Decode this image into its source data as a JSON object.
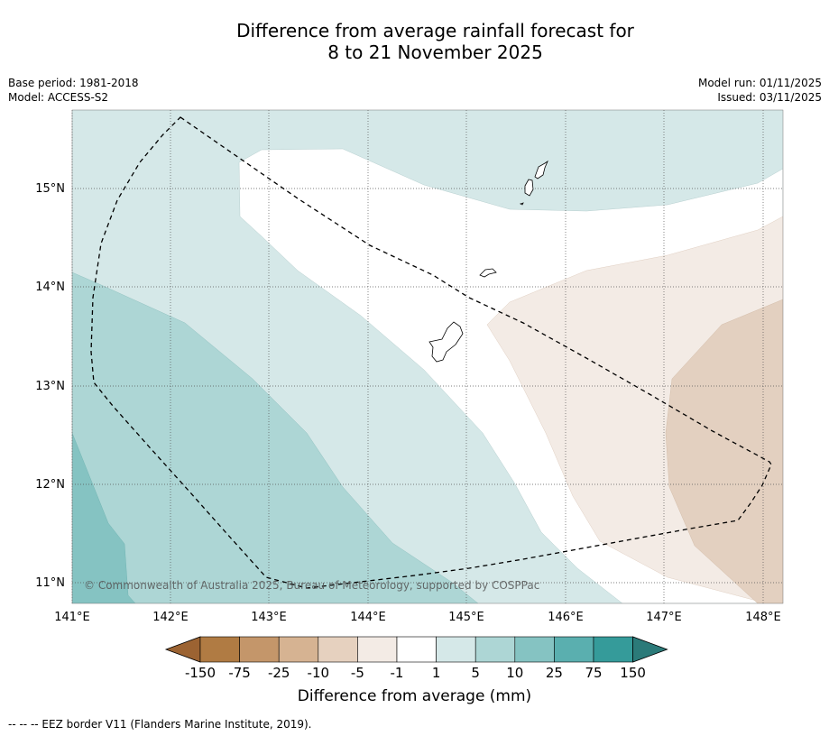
{
  "title": {
    "line1": "Difference from average rainfall forecast for",
    "line2": "8 to 21 November 2025"
  },
  "meta_left": {
    "base_period": "Base period: 1981-2018",
    "model": "Model: ACCESS-S2"
  },
  "meta_right": {
    "model_run": "Model run: 01/11/2025",
    "issued": "Issued: 03/11/2025"
  },
  "map": {
    "lat_labels": [
      "15°N",
      "14°N",
      "13°N",
      "12°N",
      "11°N"
    ],
    "lon_labels": [
      "141°E",
      "142°E",
      "143°E",
      "144°E",
      "145°E",
      "146°E",
      "147°E",
      "148°E"
    ],
    "copyright": "© Commonwealth of Australia 2025, Bureau of Meteorology, supported by COSPPac"
  },
  "colorbar": {
    "tick_labels": [
      "-150",
      "-75",
      "-25",
      "-10",
      "-5",
      "-1",
      "1",
      "5",
      "10",
      "25",
      "75",
      "150"
    ],
    "colors": [
      "#9c6332",
      "#b07b43",
      "#c4966a",
      "#d6b392",
      "#e6d1bf",
      "#f3ebe5",
      "#ffffff",
      "#d5e8e8",
      "#add6d5",
      "#85c3c2",
      "#5aafaf",
      "#359b9a",
      "#2b7a79"
    ],
    "label": "Difference from average (mm)"
  },
  "footer": {
    "legend": "-- -- -- EEZ border V11 (Flanders Marine Institute, 2019)."
  },
  "colors": {
    "light_teal": "#d5e8e8",
    "medium_teal": "#add6d5",
    "dark_teal": "#85c3c2",
    "light_tan": "#f3ebe5",
    "tan": "#e3d0c0",
    "white": "#ffffff"
  }
}
